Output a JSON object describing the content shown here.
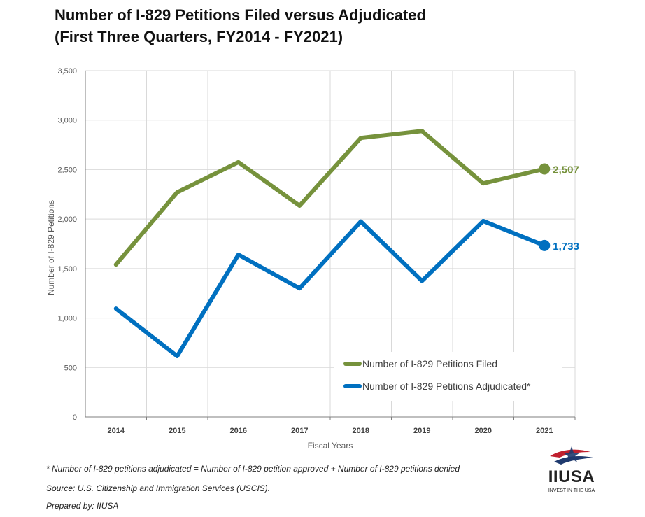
{
  "header": {
    "title_line1": "Number of I-829 Petitions Filed versus Adjudicated",
    "title_line2": "(First Three Quarters, FY2014 - FY2021)"
  },
  "chart_data": {
    "type": "line",
    "title": "Number of I-829 Petitions Filed versus Adjudicated (First Three Quarters, FY2014 - FY2021)",
    "xlabel": "Fiscal Years",
    "ylabel": "Number of I-829 Petitions",
    "categories": [
      "2014",
      "2015",
      "2016",
      "2017",
      "2018",
      "2019",
      "2020",
      "2021"
    ],
    "ylim": [
      0,
      3500
    ],
    "yticks": [
      0,
      500,
      1000,
      1500,
      2000,
      2500,
      3000,
      3500
    ],
    "ytick_labels": [
      "0",
      "500",
      "1,000",
      "1,500",
      "2,000",
      "2,500",
      "3,000",
      "3,500"
    ],
    "grid": true,
    "legend_position": "bottom-right",
    "series": [
      {
        "name": "Number of I-829 Petitions Filed",
        "color": "#76923c",
        "values": [
          1540,
          2270,
          2575,
          2135,
          2820,
          2890,
          2360,
          2507
        ],
        "end_label": "2,507"
      },
      {
        "name": "Number of I-829 Petitions Adjudicated*",
        "color": "#0070c0",
        "values": [
          1095,
          615,
          1640,
          1300,
          1975,
          1375,
          1980,
          1733
        ],
        "end_label": "1,733"
      }
    ]
  },
  "footnotes": {
    "definition": "* Number of I-829 petitions adjudicated = Number of I-829 petition approved + Number of I-829 petitions denied",
    "source": "Source: U.S. Citizenship and Immigration Services (USCIS).",
    "prepared": "Prepared by: IIUSA"
  },
  "logo": {
    "word": "IIUSA",
    "tagline": "INVEST IN THE USA",
    "colors": {
      "red": "#c0202e",
      "blue": "#1f3a6e"
    }
  }
}
